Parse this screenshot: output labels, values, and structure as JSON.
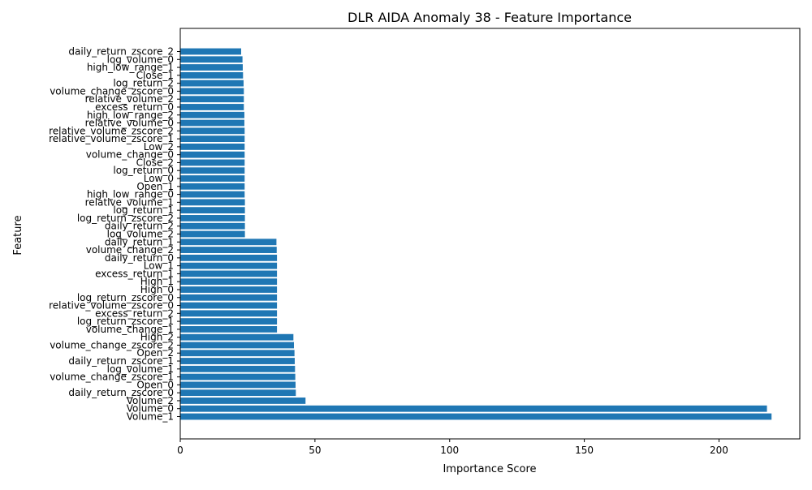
{
  "chart_data": {
    "type": "bar",
    "orientation": "horizontal",
    "title": "DLR AIDA Anomaly 38 - Feature Importance",
    "xlabel": "Importance Score",
    "ylabel": "Feature",
    "xlim": [
      0,
      230
    ],
    "xticks": [
      0,
      50,
      100,
      150,
      200
    ],
    "grid": false,
    "bar_color": "#1f77b4",
    "categories": [
      "Volume_1",
      "Volume_0",
      "Volume_2",
      "daily_return_zscore_0",
      "Open_0",
      "volume_change_zscore_1",
      "log_volume_1",
      "daily_return_zscore_1",
      "Open_2",
      "volume_change_zscore_2",
      "High_2",
      "volume_change_1",
      "log_return_zscore_1",
      "excess_return_2",
      "relative_volume_zscore_0",
      "log_return_zscore_0",
      "High_0",
      "High_1",
      "excess_return_1",
      "Low_1",
      "daily_return_0",
      "volume_change_2",
      "daily_return_1",
      "log_volume_2",
      "daily_return_2",
      "log_return_zscore_2",
      "log_return_1",
      "relative_volume_1",
      "high_low_range_0",
      "Open_1",
      "Low_0",
      "log_return_0",
      "Close_2",
      "volume_change_0",
      "Low_2",
      "relative_volume_zscore_1",
      "relative_volume_zscore_2",
      "relative_volume_0",
      "high_low_range_2",
      "excess_return_0",
      "relative_volume_2",
      "volume_change_zscore_0",
      "log_return_2",
      "Close_1",
      "high_low_range_1",
      "log_volume_0",
      "daily_return_zscore_2"
    ],
    "values": [
      219.5,
      217.8,
      46.5,
      42.9,
      42.8,
      42.7,
      42.6,
      42.5,
      42.4,
      42.2,
      42.0,
      35.9,
      35.9,
      35.9,
      35.9,
      35.9,
      35.9,
      35.9,
      35.9,
      35.9,
      35.9,
      35.8,
      35.7,
      24.0,
      24.0,
      24.0,
      24.0,
      24.0,
      23.9,
      23.9,
      23.9,
      23.9,
      23.9,
      23.9,
      23.9,
      23.9,
      23.9,
      23.8,
      23.8,
      23.6,
      23.6,
      23.6,
      23.5,
      23.3,
      23.2,
      23.1,
      22.6
    ]
  }
}
